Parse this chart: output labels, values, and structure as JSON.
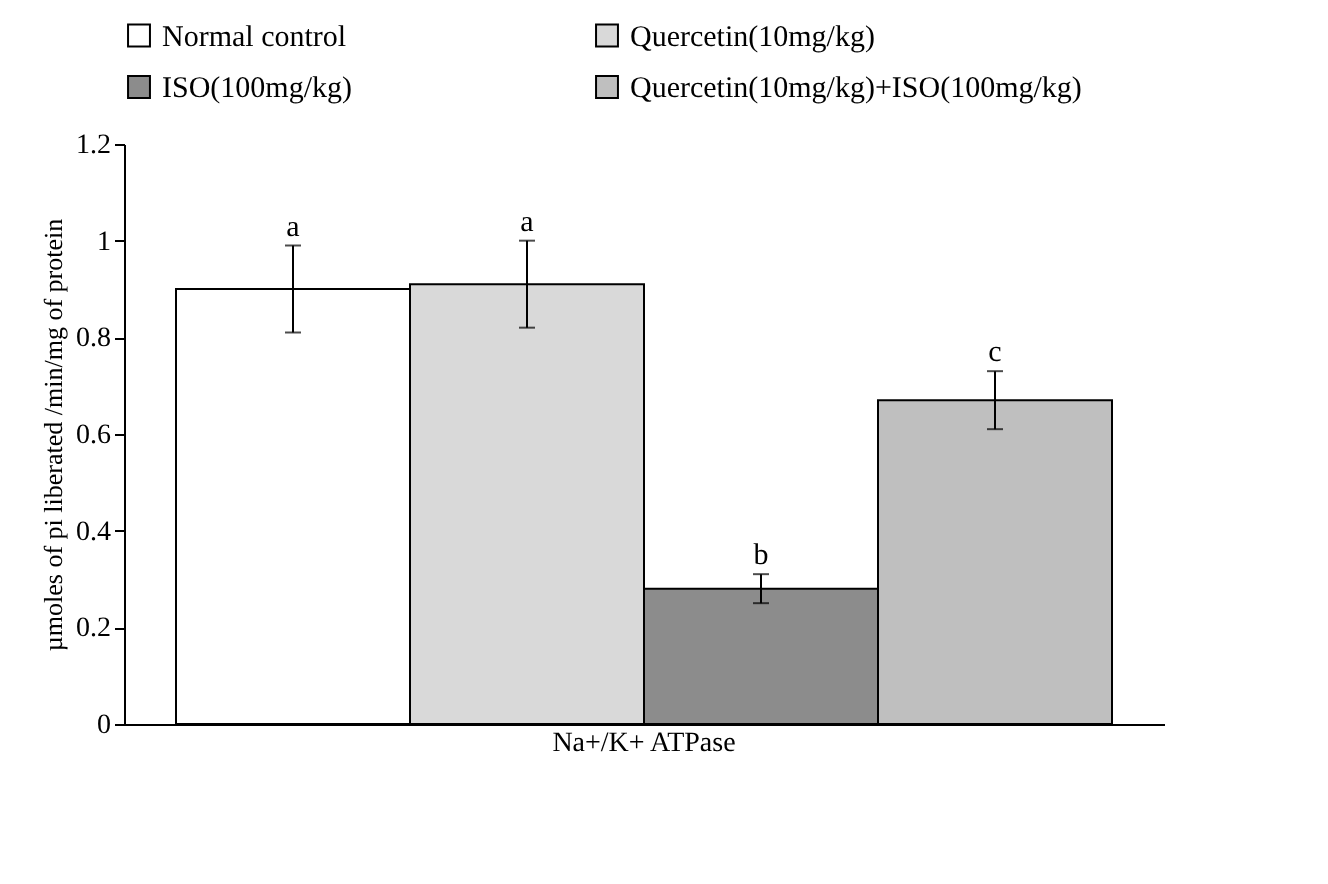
{
  "chart_data": {
    "type": "bar",
    "ylabel": "µmoles of pi liberated /min/mg of protein",
    "categories": [
      "Na+/K+ ATPase"
    ],
    "series": [
      {
        "name": "Normal control",
        "color": "#ffffff",
        "values": [
          0.9
        ],
        "errors": [
          0.09
        ],
        "value_labels": [
          "a"
        ]
      },
      {
        "name": "Quercetin(10mg/kg)",
        "color": "#d9d9d9",
        "values": [
          0.91
        ],
        "errors": [
          0.09
        ],
        "value_labels": [
          "a"
        ]
      },
      {
        "name": "ISO(100mg/kg)",
        "color": "#8c8c8c",
        "values": [
          0.28
        ],
        "errors": [
          0.03
        ],
        "value_labels": [
          "b"
        ]
      },
      {
        "name": "Quercetin(10mg/kg)+ISO(100mg/kg)",
        "color": "#bfbfbf",
        "values": [
          0.67
        ],
        "errors": [
          0.06
        ],
        "value_labels": [
          "c"
        ]
      }
    ],
    "ylim": [
      0,
      1.2
    ],
    "yticks": [
      0,
      0.2,
      0.4,
      0.6,
      0.8,
      1,
      1.2
    ],
    "grid": false,
    "legend": "top"
  }
}
